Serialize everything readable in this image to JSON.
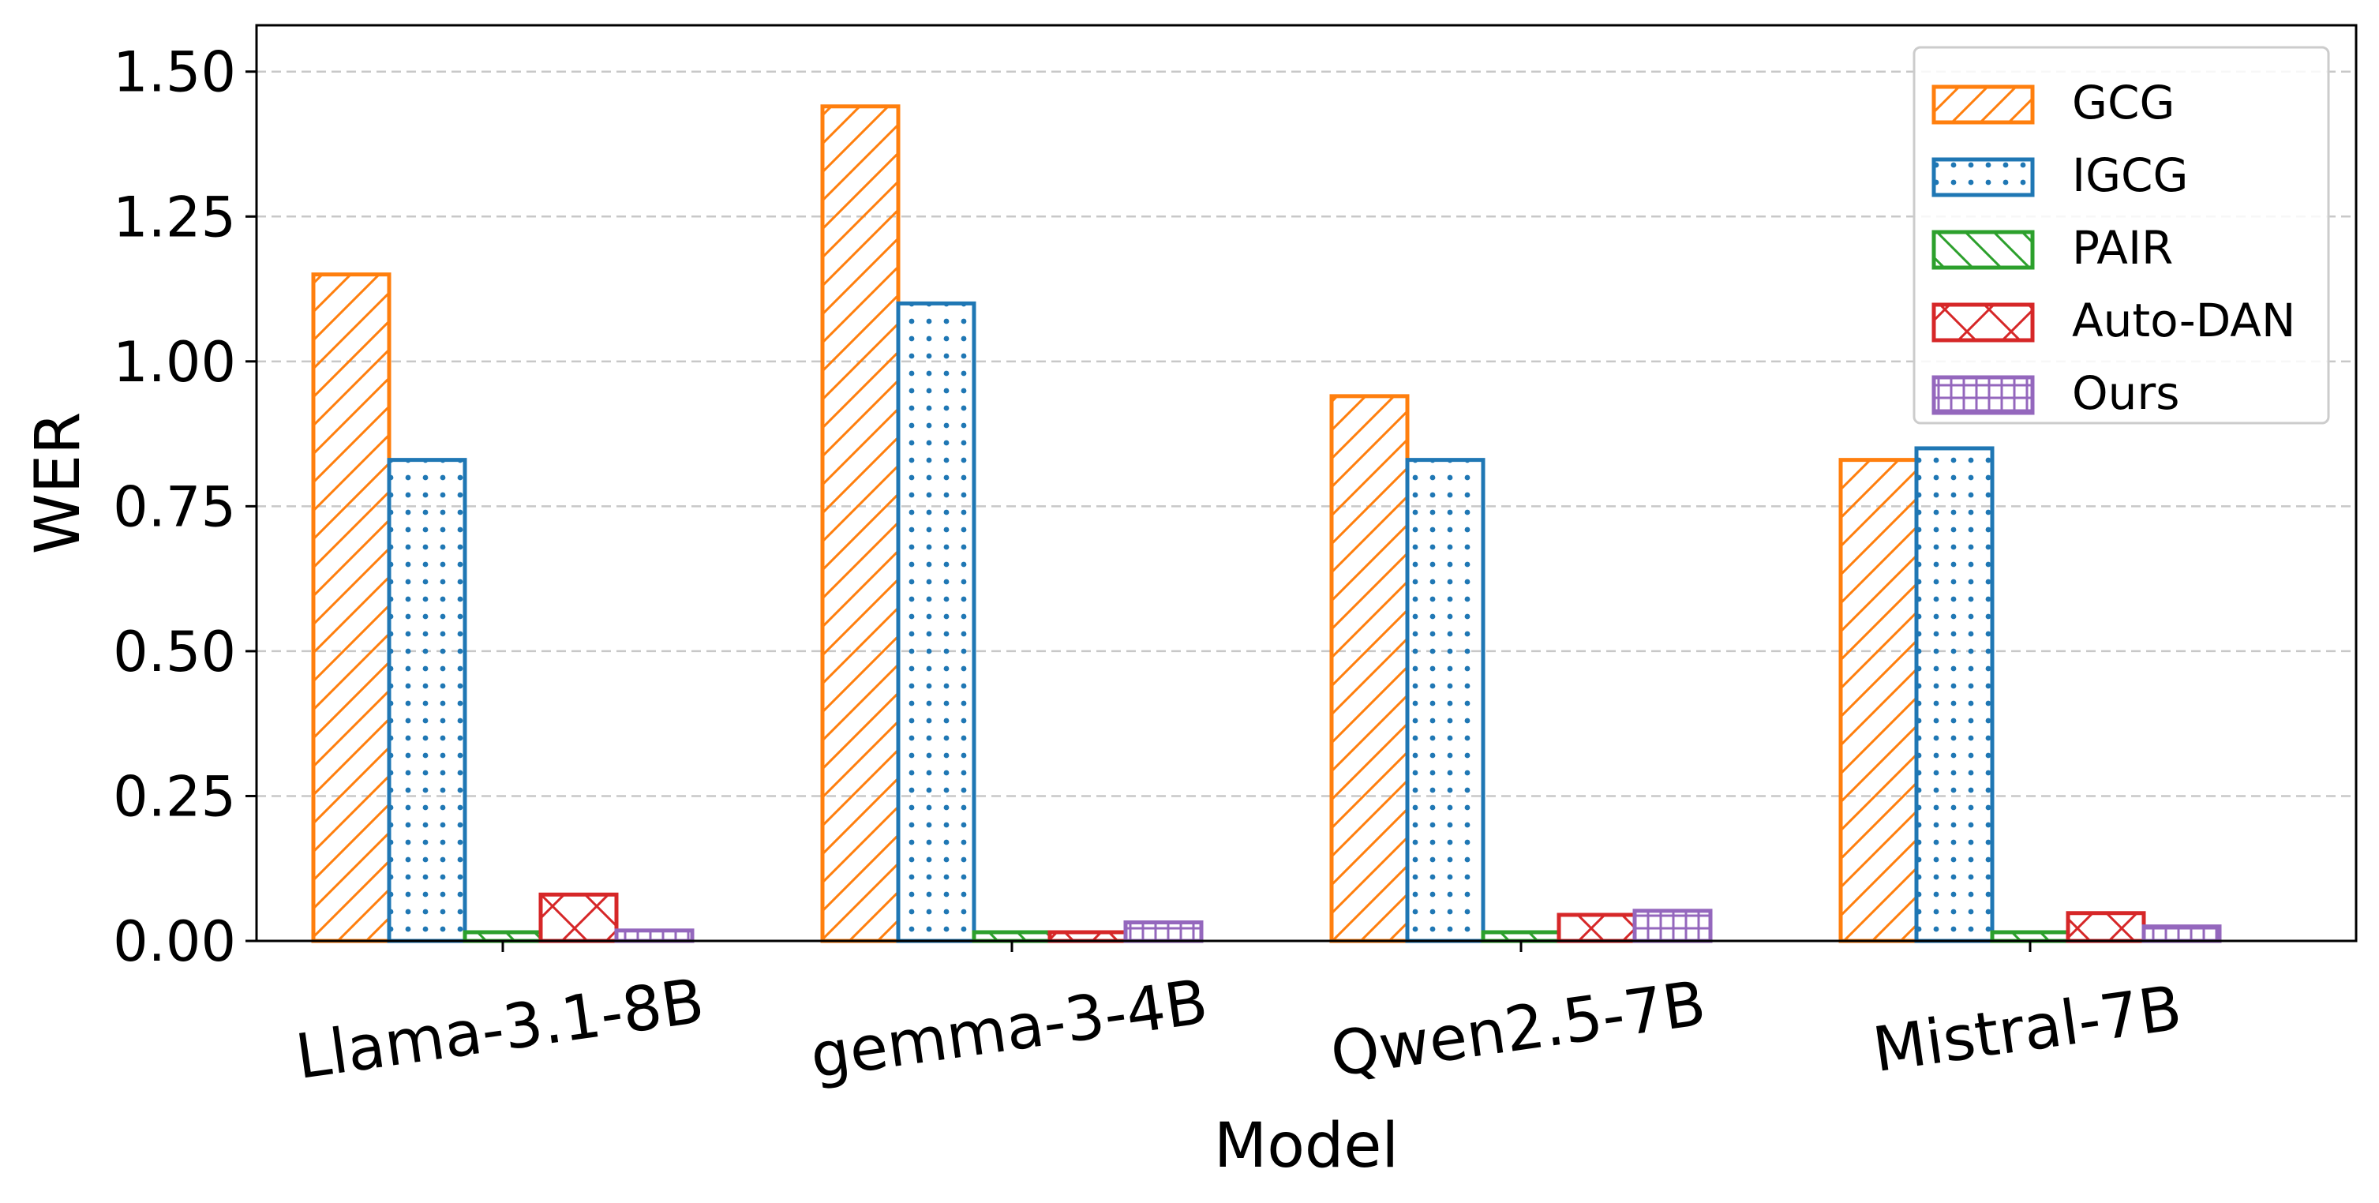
{
  "chart_data": {
    "type": "bar",
    "xlabel": "Model",
    "ylabel": "WER",
    "ylim": [
      0,
      1.58
    ],
    "yticks": [
      "0.00",
      "0.25",
      "0.50",
      "0.75",
      "1.00",
      "1.25",
      "1.50"
    ],
    "ytick_values": [
      0,
      0.25,
      0.5,
      0.75,
      1.0,
      1.25,
      1.5
    ],
    "categories": [
      "Llama-3.1-8B",
      "gemma-3-4B",
      "Qwen2.5-7B",
      "Mistral-7B"
    ],
    "grid": "horizontal dashed",
    "legend_position": "top-right",
    "series": [
      {
        "name": "GCG",
        "color": "#ff7f0e",
        "hatch": "diagonal",
        "values": [
          1.15,
          1.44,
          0.94,
          0.83
        ]
      },
      {
        "name": "IGCG",
        "color": "#1f77b4",
        "hatch": "dots",
        "values": [
          0.83,
          1.1,
          0.83,
          0.85
        ]
      },
      {
        "name": "PAIR",
        "color": "#2ca02c",
        "hatch": "backslash",
        "values": [
          0.015,
          0.015,
          0.015,
          0.015
        ]
      },
      {
        "name": "Auto-DAN",
        "color": "#d62728",
        "hatch": "crosshatch",
        "values": [
          0.08,
          0.015,
          0.045,
          0.048
        ]
      },
      {
        "name": "Ours",
        "color": "#9467bd",
        "hatch": "grid",
        "values": [
          0.018,
          0.032,
          0.052,
          0.025
        ]
      }
    ]
  }
}
